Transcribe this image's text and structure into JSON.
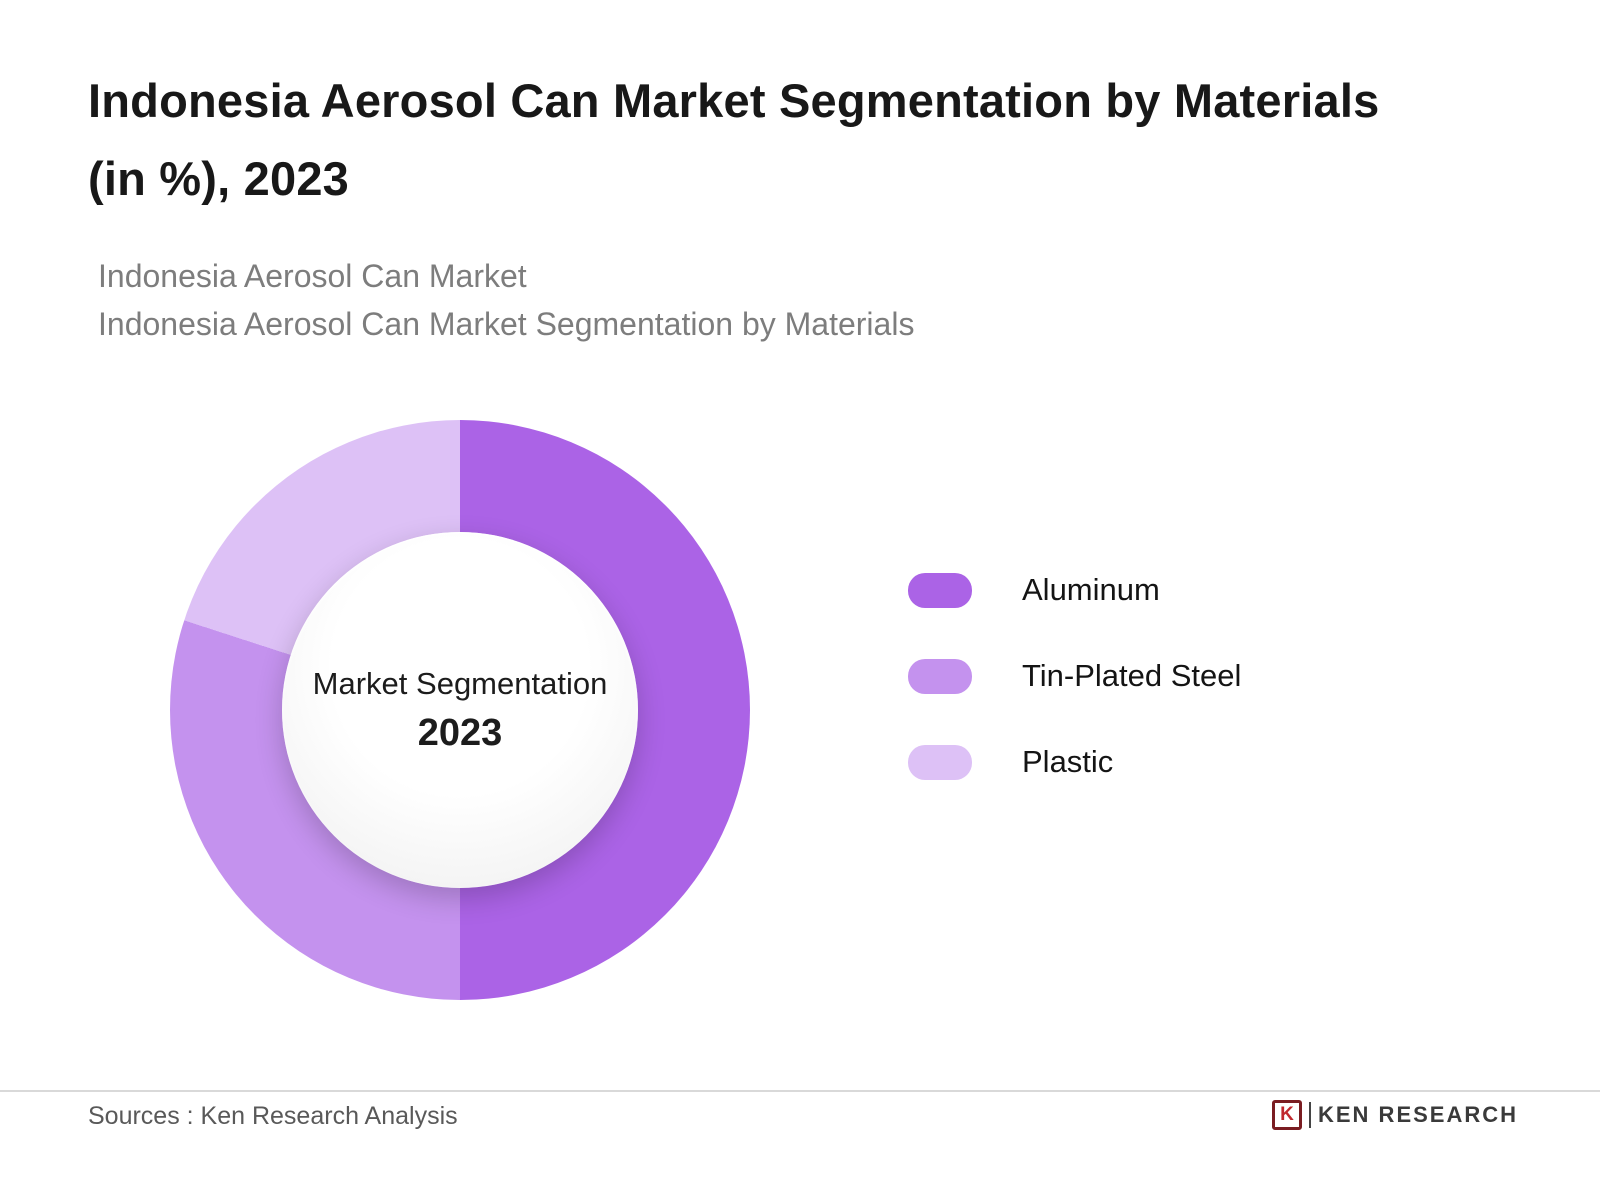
{
  "header": {
    "title_line1": "Indonesia Aerosol Can Market Segmentation by Materials",
    "title_line2": "(in %), 2023",
    "subtitle_line1": "Indonesia Aerosol Can Market",
    "subtitle_line2": "Indonesia Aerosol Can Market Segmentation by Materials"
  },
  "chart_data": {
    "type": "pie",
    "subtype": "donut",
    "unit": "%",
    "start_angle_deg": 0,
    "direction": "clockwise",
    "legend_position": "right",
    "center_label_line1": "Market Segmentation",
    "center_label_line2": "2023",
    "segments": [
      {
        "label": "Aluminum",
        "value": 50,
        "color": "#ab63e6"
      },
      {
        "label": "Tin-Plated Steel",
        "value": 30,
        "color": "#c492ee"
      },
      {
        "label": "Plastic",
        "value": 20,
        "color": "#ddc1f6"
      }
    ]
  },
  "footer": {
    "source_text": "Sources : Ken Research Analysis",
    "logo_icon_letter": "K",
    "logo_text": "KEN RESEARCH"
  }
}
